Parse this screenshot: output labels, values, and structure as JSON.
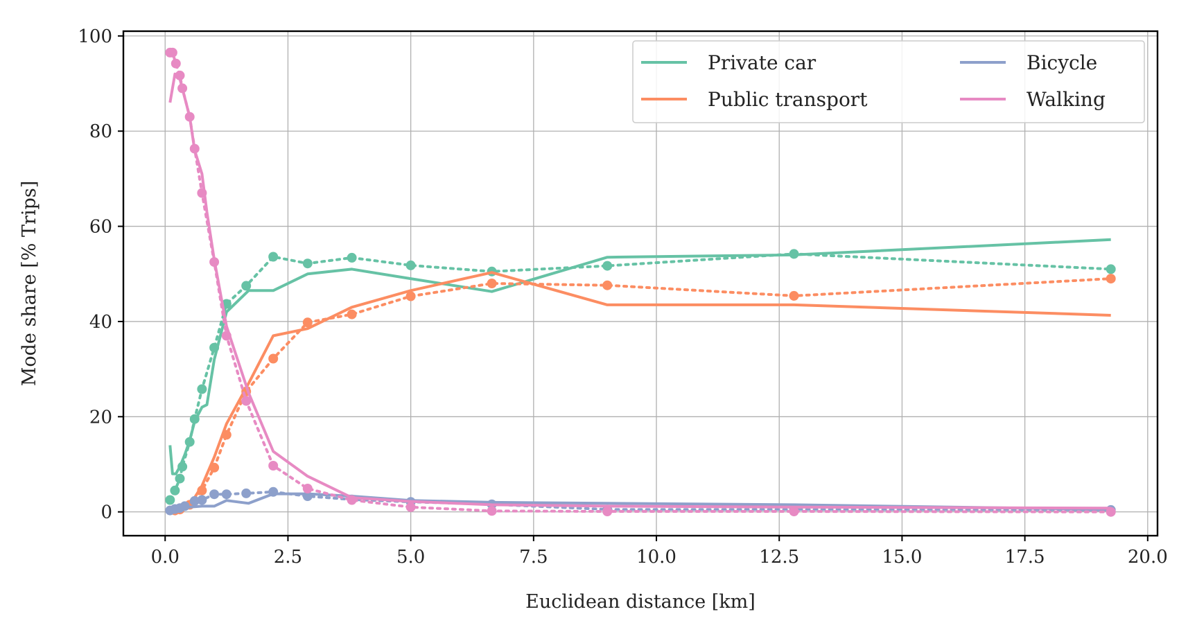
{
  "chart_data": {
    "type": "line",
    "title": "",
    "xlabel": "Euclidean distance [km]",
    "ylabel": "Mode share [% Trips]",
    "xlim": [
      -0.85,
      20.2
    ],
    "ylim": [
      -5,
      101
    ],
    "grid": true,
    "legend_position": "top-right",
    "x_ticks": [
      "0.0",
      "2.5",
      "5.0",
      "7.5",
      "10.0",
      "12.5",
      "15.0",
      "17.5",
      "20.0"
    ],
    "y_ticks": [
      "0",
      "20",
      "40",
      "60",
      "80",
      "100"
    ],
    "line_style_note": "solid = model, dotted with markers = observed",
    "series": [
      {
        "name": "Private car",
        "color": "#66c2a5",
        "model": {
          "x": [
            0.1,
            0.15,
            0.22,
            0.3,
            0.4,
            0.5,
            0.6,
            0.75,
            0.85,
            1.0,
            1.25,
            1.7,
            2.2,
            2.9,
            3.8,
            5.0,
            6.65,
            9.0,
            12.8,
            19.25
          ],
          "y": [
            14,
            8,
            8,
            9.5,
            12,
            15,
            19,
            22,
            22.5,
            32,
            42,
            46.5,
            46.5,
            50,
            51,
            49,
            46.3,
            53.5,
            54,
            57.2
          ]
        },
        "observed": {
          "x": [
            0.1,
            0.2,
            0.3,
            0.35,
            0.5,
            0.6,
            0.75,
            1.0,
            1.25,
            1.65,
            2.2,
            2.9,
            3.8,
            5.0,
            6.65,
            9.0,
            12.8,
            19.25
          ],
          "y": [
            2.5,
            4.5,
            7,
            9.5,
            14.7,
            19.5,
            25.8,
            34.5,
            43.7,
            47.5,
            53.6,
            52.2,
            53.4,
            51.8,
            50.5,
            51.7,
            54.2,
            51
          ]
        }
      },
      {
        "name": "Public transport",
        "color": "#fc8d62",
        "model": {
          "x": [
            0.1,
            0.2,
            0.3,
            0.5,
            0.6,
            0.75,
            1.0,
            1.25,
            1.7,
            2.2,
            2.9,
            3.8,
            5.0,
            6.65,
            9.0,
            12.8,
            19.25
          ],
          "y": [
            0.2,
            0.3,
            0.5,
            1.5,
            3,
            5.5,
            11.5,
            18.5,
            27,
            37,
            38.5,
            43,
            46.5,
            50.3,
            43.5,
            43.5,
            41.3
          ]
        },
        "observed": {
          "x": [
            0.2,
            0.3,
            0.5,
            0.75,
            1.0,
            1.25,
            1.65,
            2.2,
            2.9,
            3.8,
            5.0,
            6.65,
            9.0,
            12.8,
            19.25
          ],
          "y": [
            0.3,
            0.5,
            1.5,
            4.5,
            9.3,
            16.2,
            25.3,
            32.2,
            39.8,
            41.5,
            45.3,
            48,
            47.6,
            45.4,
            49
          ]
        }
      },
      {
        "name": "Bicycle",
        "color": "#8da0cb",
        "model": {
          "x": [
            0.1,
            0.3,
            0.5,
            0.75,
            1.0,
            1.25,
            1.7,
            2.2,
            2.9,
            3.8,
            5.0,
            6.65,
            9.0,
            12.8,
            19.25
          ],
          "y": [
            0.5,
            0.7,
            1,
            1.2,
            1.2,
            2.4,
            1.8,
            3.8,
            3.8,
            3.3,
            2.4,
            2,
            1.8,
            1.5,
            0.5
          ]
        },
        "observed": {
          "x": [
            0.1,
            0.2,
            0.3,
            0.4,
            0.6,
            0.75,
            1.0,
            1.25,
            1.65,
            2.2,
            2.9,
            3.8,
            5.0,
            6.65,
            9.0,
            12.8,
            19.25
          ],
          "y": [
            0.3,
            0.6,
            0.8,
            1.2,
            2.3,
            2.5,
            3.7,
            3.7,
            3.9,
            4.2,
            3.3,
            2.6,
            2.1,
            1.6,
            0.5,
            0.5,
            0.4
          ]
        }
      },
      {
        "name": "Walking",
        "color": "#e78ac3",
        "model": {
          "x": [
            0.1,
            0.2,
            0.3,
            0.5,
            0.6,
            0.75,
            0.85,
            1.0,
            1.25,
            1.7,
            2.2,
            2.9,
            3.8,
            5.0,
            6.65,
            9.0,
            12.8,
            19.25
          ],
          "y": [
            86,
            92,
            91,
            83,
            76,
            71,
            63,
            53,
            39,
            25,
            12.7,
            7.5,
            3,
            2.2,
            1.5,
            1.2,
            1,
            0.8
          ]
        },
        "observed": {
          "x": [
            0.1,
            0.15,
            0.22,
            0.3,
            0.35,
            0.5,
            0.6,
            0.75,
            1.0,
            1.25,
            1.65,
            2.2,
            2.9,
            3.8,
            5.0,
            6.65,
            9.0,
            12.8,
            19.25
          ],
          "y": [
            96.5,
            96.5,
            94.2,
            91.7,
            89,
            83,
            76.3,
            67,
            52.5,
            37,
            23.3,
            9.7,
            4.9,
            2.5,
            1,
            0.2,
            0.1,
            0.1,
            0
          ]
        }
      }
    ]
  }
}
